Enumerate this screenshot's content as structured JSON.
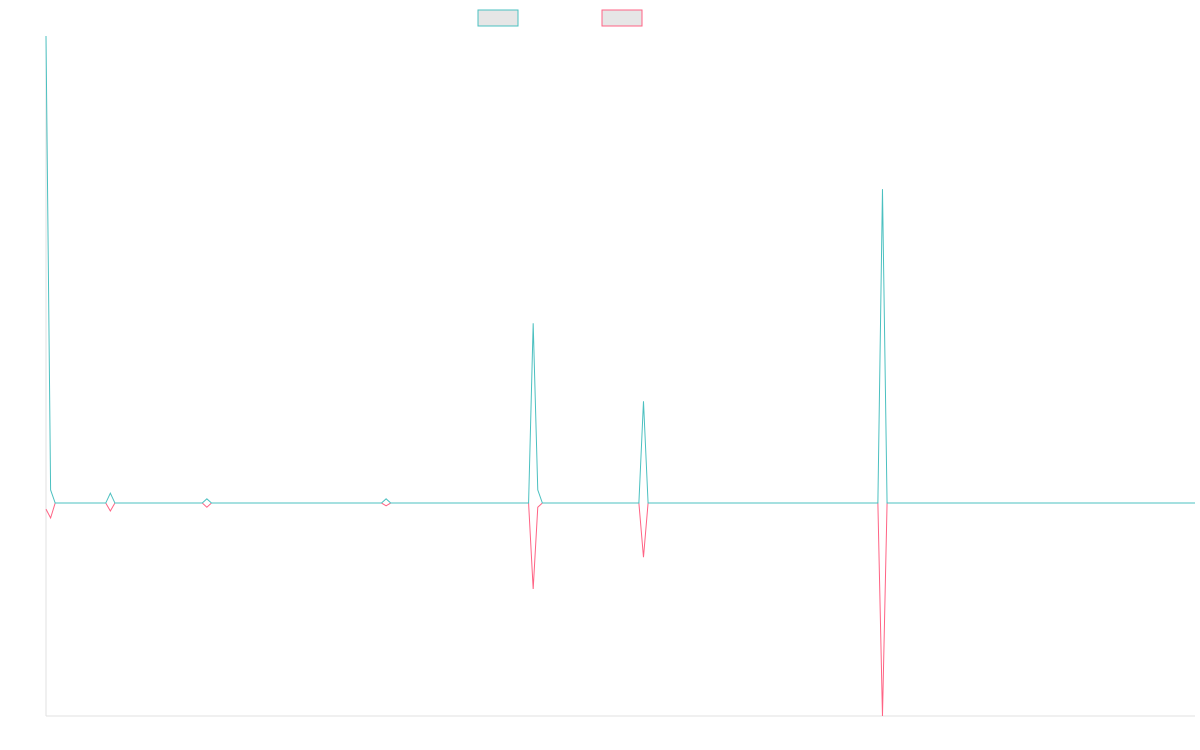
{
  "chart_data": {
    "type": "line",
    "xlim": [
      0,
      250
    ],
    "ylim": [
      -0.456,
      1
    ],
    "grid": false,
    "legend": "top",
    "series": [
      {
        "color": "#ff6384",
        "x": [
          0,
          1,
          2,
          13,
          14,
          15,
          34,
          35,
          36,
          73,
          74,
          75,
          105,
          106,
          107,
          108,
          129,
          130,
          131,
          181,
          182,
          183,
          250
        ],
        "values": [
          -0.013,
          -0.032,
          0,
          0,
          -0.017,
          0,
          0,
          -0.009,
          0,
          0,
          -0.006,
          0,
          0,
          -0.184,
          -0.009,
          0,
          0,
          -0.116,
          0,
          0,
          -0.456,
          0,
          0
        ]
      },
      {
        "color": "#4bc0c0",
        "x": [
          0,
          1,
          2,
          13,
          14,
          15,
          34,
          35,
          36,
          73,
          74,
          75,
          105,
          106,
          107,
          108,
          129,
          130,
          131,
          181,
          182,
          183,
          250
        ],
        "values": [
          1,
          0.028,
          0,
          0,
          0.021,
          0,
          0,
          0.009,
          0,
          0,
          0.009,
          0,
          0,
          0.385,
          0.028,
          0,
          0,
          0.218,
          0,
          0,
          0.672,
          0,
          0
        ]
      }
    ]
  }
}
